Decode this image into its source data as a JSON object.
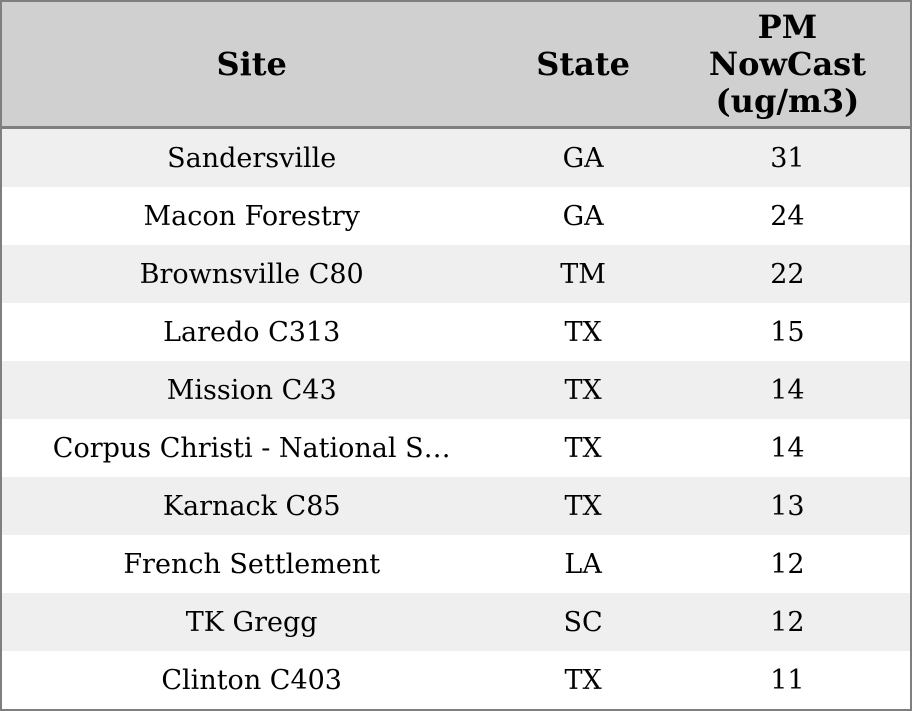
{
  "chart_data": {
    "type": "table",
    "columns": [
      "Site",
      "State",
      "PM NowCast (ug/m3)"
    ],
    "header_display": [
      "Site",
      "State",
      "PM\nNowCast\n(ug/m3)"
    ],
    "rows": [
      [
        "Sandersville",
        "GA",
        31
      ],
      [
        "Macon Forestry",
        "GA",
        24
      ],
      [
        "Brownsville C80",
        "TM",
        22
      ],
      [
        "Laredo C313",
        "TX",
        15
      ],
      [
        "Mission C43",
        "TX",
        14
      ],
      [
        "Corpus Christi - National S…",
        "TX",
        14
      ],
      [
        "Karnack C85",
        "TX",
        13
      ],
      [
        "French Settlement",
        "LA",
        12
      ],
      [
        "TK Gregg",
        "SC",
        12
      ],
      [
        "Clinton C403",
        "TX",
        11
      ]
    ]
  },
  "colors": {
    "header_bg": "#d0d0d0",
    "row_stripe": "#efefef",
    "row_plain": "#ffffff",
    "border": "#7f7f7f",
    "text": "#000000"
  }
}
